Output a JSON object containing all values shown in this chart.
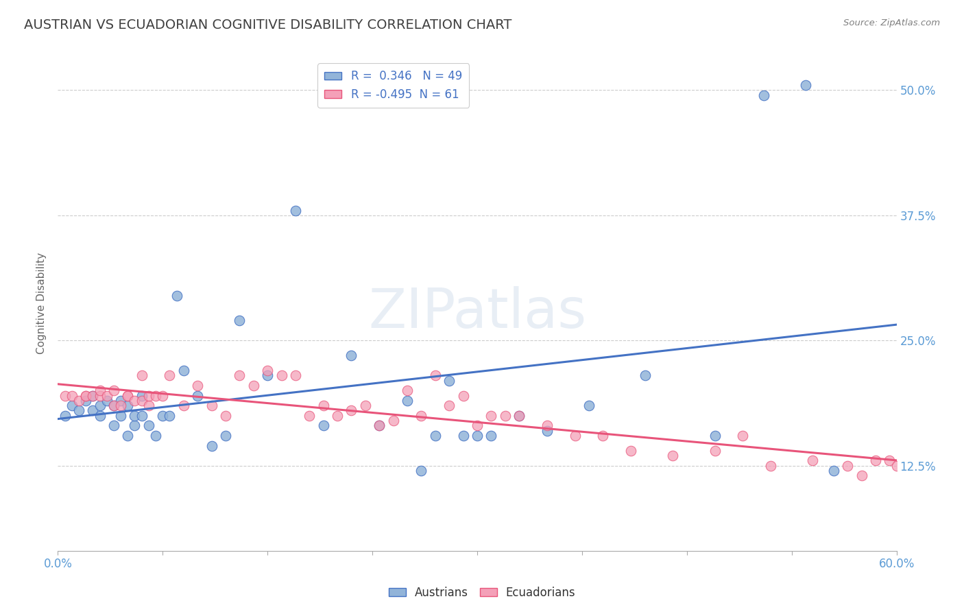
{
  "title": "AUSTRIAN VS ECUADORIAN COGNITIVE DISABILITY CORRELATION CHART",
  "source": "Source: ZipAtlas.com",
  "ylabel": "Cognitive Disability",
  "ytick_labels": [
    "12.5%",
    "25.0%",
    "37.5%",
    "50.0%"
  ],
  "ytick_values": [
    0.125,
    0.25,
    0.375,
    0.5
  ],
  "xmin": 0.0,
  "xmax": 0.6,
  "ymin": 0.04,
  "ymax": 0.535,
  "blue_R": 0.346,
  "blue_N": 49,
  "pink_R": -0.495,
  "pink_N": 61,
  "legend_labels": [
    "Austrians",
    "Ecuadorians"
  ],
  "blue_color": "#92B4D9",
  "pink_color": "#F4A0B8",
  "blue_line_color": "#4472C4",
  "pink_line_color": "#E8547A",
  "background_color": "#FFFFFF",
  "grid_color": "#CCCCCC",
  "watermark_color": "#E8EEF5",
  "title_color": "#404040",
  "source_color": "#808080",
  "tick_color": "#5B9BD5",
  "austrians_x": [
    0.005,
    0.01,
    0.015,
    0.02,
    0.025,
    0.025,
    0.03,
    0.03,
    0.035,
    0.04,
    0.04,
    0.045,
    0.045,
    0.05,
    0.05,
    0.055,
    0.055,
    0.06,
    0.06,
    0.065,
    0.07,
    0.075,
    0.08,
    0.085,
    0.09,
    0.1,
    0.11,
    0.12,
    0.13,
    0.15,
    0.17,
    0.19,
    0.21,
    0.23,
    0.25,
    0.27,
    0.29,
    0.31,
    0.33,
    0.35,
    0.38,
    0.42,
    0.26,
    0.28,
    0.3,
    0.47,
    0.505,
    0.535,
    0.555
  ],
  "austrians_y": [
    0.175,
    0.185,
    0.18,
    0.19,
    0.18,
    0.195,
    0.175,
    0.185,
    0.19,
    0.165,
    0.185,
    0.175,
    0.19,
    0.155,
    0.185,
    0.165,
    0.175,
    0.195,
    0.175,
    0.165,
    0.155,
    0.175,
    0.175,
    0.295,
    0.22,
    0.195,
    0.145,
    0.155,
    0.27,
    0.215,
    0.38,
    0.165,
    0.235,
    0.165,
    0.19,
    0.155,
    0.155,
    0.155,
    0.175,
    0.16,
    0.185,
    0.215,
    0.12,
    0.21,
    0.155,
    0.155,
    0.495,
    0.505,
    0.12
  ],
  "ecuadorians_x": [
    0.005,
    0.01,
    0.015,
    0.02,
    0.02,
    0.025,
    0.03,
    0.03,
    0.035,
    0.04,
    0.04,
    0.045,
    0.05,
    0.05,
    0.055,
    0.06,
    0.06,
    0.065,
    0.065,
    0.07,
    0.075,
    0.08,
    0.09,
    0.1,
    0.11,
    0.12,
    0.13,
    0.14,
    0.15,
    0.16,
    0.17,
    0.18,
    0.19,
    0.2,
    0.21,
    0.22,
    0.23,
    0.24,
    0.25,
    0.26,
    0.27,
    0.28,
    0.29,
    0.3,
    0.31,
    0.32,
    0.33,
    0.35,
    0.37,
    0.39,
    0.41,
    0.44,
    0.47,
    0.49,
    0.51,
    0.54,
    0.565,
    0.575,
    0.585,
    0.595,
    0.6
  ],
  "ecuadorians_y": [
    0.195,
    0.195,
    0.19,
    0.195,
    0.195,
    0.195,
    0.195,
    0.2,
    0.195,
    0.185,
    0.2,
    0.185,
    0.195,
    0.195,
    0.19,
    0.19,
    0.215,
    0.185,
    0.195,
    0.195,
    0.195,
    0.215,
    0.185,
    0.205,
    0.185,
    0.175,
    0.215,
    0.205,
    0.22,
    0.215,
    0.215,
    0.175,
    0.185,
    0.175,
    0.18,
    0.185,
    0.165,
    0.17,
    0.2,
    0.175,
    0.215,
    0.185,
    0.195,
    0.165,
    0.175,
    0.175,
    0.175,
    0.165,
    0.155,
    0.155,
    0.14,
    0.135,
    0.14,
    0.155,
    0.125,
    0.13,
    0.125,
    0.115,
    0.13,
    0.13,
    0.125
  ]
}
